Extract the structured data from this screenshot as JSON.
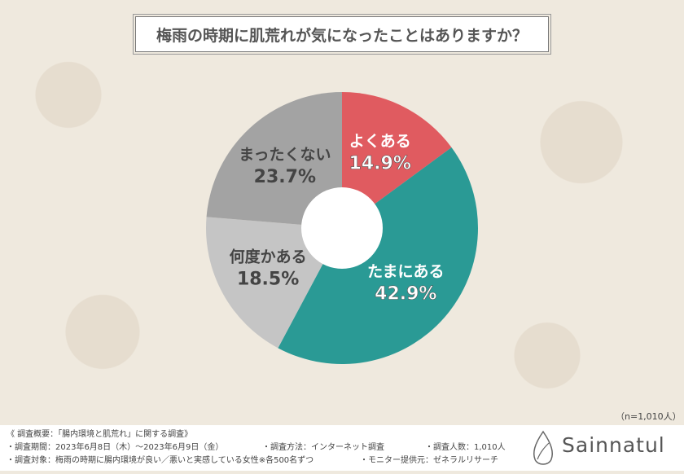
{
  "title": "梅雨の時期に肌荒れが気になったことはありますか？",
  "chart_data": {
    "type": "donut",
    "categories": [
      "よくある",
      "たまにある",
      "何度かある",
      "まったくない"
    ],
    "values": [
      14.9,
      42.9,
      18.5,
      23.7
    ],
    "labels": [
      "14.9%",
      "42.9%",
      "18.5%",
      "23.7%"
    ],
    "colors": [
      "#e05b60",
      "#2a9a95",
      "#c5c5c5",
      "#a3a3a3"
    ],
    "start": "12 o'clock, clockwise"
  },
  "sample_size": "（n=1,010人）",
  "footer": {
    "line1": "《 調査概要：「腸内環境と肌荒れ」に関する調査》",
    "period": "・調査期間：2023年6月8日（木）～2023年6月9日（金）",
    "method": "・調査方法：インターネット調査",
    "count": "・調査人数：1,010人",
    "target": "・調査対象：梅雨の時期に腸内環境が良い／悪いと実感している女性※各500名ずつ",
    "provider": "・モニター提供元：ゼネラルリサーチ",
    "logo": "Sainnatul"
  }
}
